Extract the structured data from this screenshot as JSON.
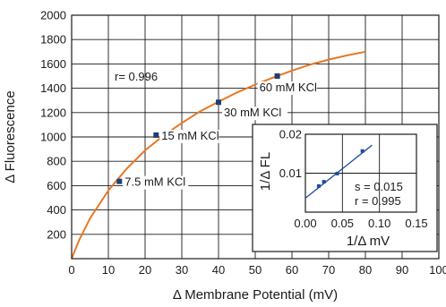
{
  "chart_data": [
    {
      "type": "scatter",
      "xlabel": "Δ Membrane Potential (mV)",
      "ylabel": "Δ Fluorescence",
      "xlim": [
        0,
        100
      ],
      "ylim": [
        0,
        2000
      ],
      "xticks": [
        "0",
        "10",
        "20",
        "30",
        "40",
        "50",
        "60",
        "70",
        "80",
        "90",
        "100"
      ],
      "yticks": [
        "200",
        "400",
        "600",
        "800",
        "1000",
        "1200",
        "1400",
        "1600",
        "1800",
        "2000"
      ],
      "grid": true,
      "annotation": "r=  0.996",
      "points": [
        {
          "x": 13,
          "y": 635,
          "label": "7.5 mM KCl"
        },
        {
          "x": 23,
          "y": 1015,
          "label": "15 mM KCl"
        },
        {
          "x": 40,
          "y": 1285,
          "label": "30  mM KCl"
        },
        {
          "x": 56,
          "y": 1500,
          "label": "60 mM KCl"
        }
      ],
      "fit_curve": {
        "x": [
          0,
          2,
          5,
          10,
          15,
          20,
          25,
          30,
          35,
          40,
          45,
          50,
          55,
          60,
          65,
          70,
          75,
          80
        ],
        "y": [
          0,
          150,
          330,
          560,
          740,
          890,
          1010,
          1115,
          1210,
          1290,
          1365,
          1430,
          1490,
          1545,
          1595,
          1635,
          1670,
          1700
        ],
        "color": "#e87722"
      },
      "point_color": "#1f3f73"
    },
    {
      "type": "scatter",
      "inset": true,
      "xlabel": "1/Δ mV",
      "ylabel": "1/Δ FL",
      "xlim": [
        0,
        0.15
      ],
      "ylim": [
        0,
        0.02
      ],
      "xticks": [
        "0.00",
        "0.05",
        "0.10",
        "0.15"
      ],
      "yticks": [
        "0.01",
        "0.02"
      ],
      "grid": true,
      "annotations": [
        "s = 0.015",
        "r = 0.995"
      ],
      "points": [
        {
          "x": 0.018,
          "y": 0.0067
        },
        {
          "x": 0.025,
          "y": 0.0078
        },
        {
          "x": 0.043,
          "y": 0.0099
        },
        {
          "x": 0.077,
          "y": 0.0157
        }
      ],
      "fit_line": {
        "x": [
          0.0,
          0.09
        ],
        "y": [
          0.0036,
          0.0172
        ],
        "color": "#1f4e9c"
      },
      "point_color": "#1f4e9c"
    }
  ]
}
